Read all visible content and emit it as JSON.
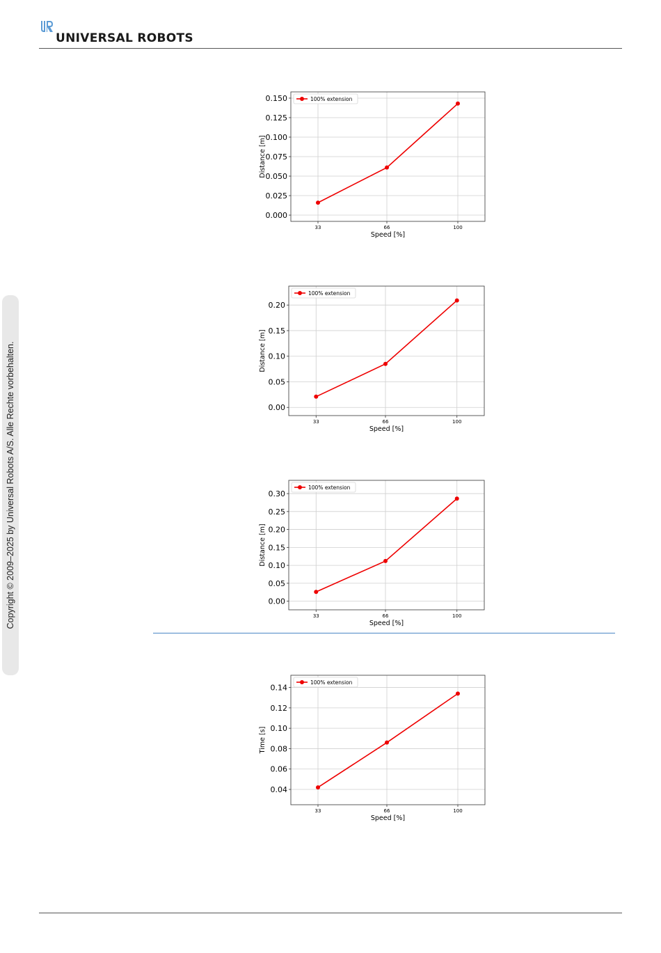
{
  "header": {
    "brand": "UNIVERSAL ROBOTS"
  },
  "sidebar": {
    "copyright": "Copyright © 2009–2025 by Universal Robots A/S. Alle Rechte vorbehalten."
  },
  "colors": {
    "series": "#ee0000",
    "brand_blue": "#5b9bd5",
    "rule_blue": "#4a86c5"
  },
  "icons": {
    "logo": "ur-logo-icon"
  },
  "chart_data": [
    {
      "type": "line",
      "x": [
        33,
        66,
        100
      ],
      "series": [
        {
          "name": "100% extension",
          "values": [
            0.016,
            0.061,
            0.143
          ]
        }
      ],
      "xlabel": "Speed [%]",
      "ylabel": "Distance [m]",
      "yticks": [
        0.0,
        0.025,
        0.05,
        0.075,
        0.1,
        0.125,
        0.15
      ],
      "ytick_labels": [
        "0.000",
        "0.025",
        "0.050",
        "0.075",
        "0.100",
        "0.125",
        "0.150"
      ],
      "ylim": [
        -0.008,
        0.158
      ],
      "xlim": [
        20,
        113
      ],
      "grid": true,
      "legend": "top-left"
    },
    {
      "type": "line",
      "x": [
        33,
        66,
        100
      ],
      "series": [
        {
          "name": "100% extension",
          "values": [
            0.021,
            0.085,
            0.209
          ]
        }
      ],
      "xlabel": "Speed [%]",
      "ylabel": "Distance [m]",
      "yticks": [
        0.0,
        0.05,
        0.1,
        0.15,
        0.2
      ],
      "ytick_labels": [
        "0.00",
        "0.05",
        "0.10",
        "0.15",
        "0.20"
      ],
      "ylim": [
        -0.016,
        0.237
      ],
      "xlim": [
        20,
        113
      ],
      "grid": true,
      "legend": "top-left"
    },
    {
      "type": "line",
      "x": [
        33,
        66,
        100
      ],
      "series": [
        {
          "name": "100% extension",
          "values": [
            0.026,
            0.112,
            0.286
          ]
        }
      ],
      "xlabel": "Speed [%]",
      "ylabel": "Distance [m]",
      "yticks": [
        0.0,
        0.05,
        0.1,
        0.15,
        0.2,
        0.25,
        0.3
      ],
      "ytick_labels": [
        "0.00",
        "0.05",
        "0.10",
        "0.15",
        "0.20",
        "0.25",
        "0.30"
      ],
      "ylim": [
        -0.024,
        0.337
      ],
      "xlim": [
        20,
        113
      ],
      "grid": true,
      "legend": "top-left"
    },
    {
      "type": "line",
      "x": [
        33,
        66,
        100
      ],
      "series": [
        {
          "name": "100% extension",
          "values": [
            0.042,
            0.086,
            0.134
          ]
        }
      ],
      "xlabel": "Speed [%]",
      "ylabel": "Time [s]",
      "yticks": [
        0.04,
        0.06,
        0.08,
        0.1,
        0.12,
        0.14
      ],
      "ytick_labels": [
        "0.04",
        "0.06",
        "0.08",
        "0.10",
        "0.12",
        "0.14"
      ],
      "ylim": [
        0.025,
        0.152
      ],
      "xlim": [
        20,
        113
      ],
      "grid": true,
      "legend": "top-left"
    }
  ]
}
